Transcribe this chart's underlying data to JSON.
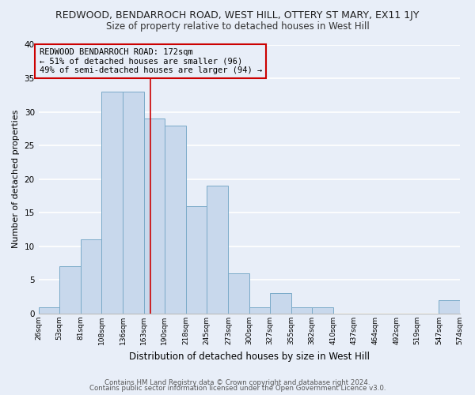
{
  "title": "REDWOOD, BENDARROCH ROAD, WEST HILL, OTTERY ST MARY, EX11 1JY",
  "subtitle": "Size of property relative to detached houses in West Hill",
  "xlabel": "Distribution of detached houses by size in West Hill",
  "ylabel": "Number of detached properties",
  "bar_color": "#c8d8ec",
  "bar_edgecolor": "#7aaac8",
  "background_color": "#e8eef8",
  "grid_color": "#ffffff",
  "bins": [
    26,
    53,
    81,
    108,
    136,
    163,
    190,
    218,
    245,
    273,
    300,
    327,
    355,
    382,
    410,
    437,
    464,
    492,
    519,
    547,
    574
  ],
  "counts": [
    1,
    7,
    11,
    33,
    33,
    29,
    28,
    16,
    19,
    6,
    1,
    3,
    1,
    1,
    0,
    0,
    0,
    0,
    0,
    2
  ],
  "tick_labels": [
    "26sqm",
    "53sqm",
    "81sqm",
    "108sqm",
    "136sqm",
    "163sqm",
    "190sqm",
    "218sqm",
    "245sqm",
    "273sqm",
    "300sqm",
    "327sqm",
    "355sqm",
    "382sqm",
    "410sqm",
    "437sqm",
    "464sqm",
    "492sqm",
    "519sqm",
    "547sqm",
    "574sqm"
  ],
  "vline_x": 172,
  "vline_color": "#cc0000",
  "annotation_text": "REDWOOD BENDARROCH ROAD: 172sqm\n← 51% of detached houses are smaller (96)\n49% of semi-detached houses are larger (94) →",
  "annotation_box_edgecolor": "#cc0000",
  "annotation_fontsize": 7.5,
  "ylim": [
    0,
    40
  ],
  "yticks": [
    0,
    5,
    10,
    15,
    20,
    25,
    30,
    35,
    40
  ],
  "title_fontsize": 9,
  "subtitle_fontsize": 8.5,
  "ylabel_fontsize": 8,
  "xlabel_fontsize": 8.5,
  "footer1": "Contains HM Land Registry data © Crown copyright and database right 2024.",
  "footer2": "Contains public sector information licensed under the Open Government Licence v3.0.",
  "footer_fontsize": 6.2
}
